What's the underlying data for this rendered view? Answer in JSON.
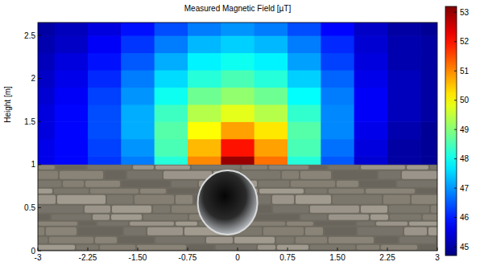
{
  "chart_data": {
    "type": "heatmap",
    "title": "Measured Magnetic Field [µT]",
    "ylabel": "Height [m]",
    "xlim": [
      -3,
      3
    ],
    "ylim": [
      0,
      2.65
    ],
    "xticks": [
      -3,
      -2.25,
      {
        "value": -1.5,
        "label": "-1.50"
      },
      -0.75,
      0,
      0.75,
      {
        "value": 1.5,
        "label": "1.50"
      },
      2.25,
      3
    ],
    "yticks": [
      0,
      0.5,
      1,
      1.5,
      2,
      2.5
    ],
    "x": [
      -3,
      -2.5,
      -2,
      -1.5,
      -1,
      -0.5,
      0,
      0.5,
      1,
      1.5,
      2,
      2.5,
      3
    ],
    "y": [
      1.0,
      1.2,
      1.4,
      1.6,
      1.8,
      2.0,
      2.2,
      2.4,
      2.6
    ],
    "cells": [
      [
        45.6,
        45.8,
        46.2,
        46.8,
        48.2,
        51.0,
        53.0,
        51.2,
        48.2,
        46.5,
        45.4,
        45.0,
        44.9
      ],
      [
        45.6,
        45.8,
        46.3,
        47.0,
        48.5,
        50.6,
        52.0,
        50.8,
        48.5,
        46.7,
        45.5,
        45.0,
        44.9
      ],
      [
        45.5,
        45.8,
        46.4,
        47.2,
        48.6,
        50.0,
        50.8,
        50.2,
        48.6,
        46.9,
        45.6,
        45.1,
        44.9
      ],
      [
        45.5,
        45.8,
        46.4,
        47.2,
        48.4,
        49.4,
        49.8,
        49.4,
        48.3,
        46.9,
        45.7,
        45.2,
        45.0
      ],
      [
        45.4,
        45.7,
        46.3,
        47.0,
        48.0,
        48.8,
        49.1,
        48.8,
        47.9,
        46.8,
        45.7,
        45.2,
        45.0
      ],
      [
        45.3,
        45.6,
        46.1,
        46.8,
        47.6,
        48.2,
        48.5,
        48.2,
        47.5,
        46.6,
        45.6,
        45.2,
        45.0
      ],
      [
        45.2,
        45.5,
        45.9,
        46.5,
        47.2,
        47.8,
        48.0,
        47.8,
        47.1,
        46.3,
        45.5,
        45.1,
        45.0
      ],
      [
        45.1,
        45.3,
        45.7,
        46.2,
        46.8,
        47.3,
        47.5,
        47.3,
        46.8,
        46.1,
        45.4,
        45.1,
        45.0
      ],
      [
        45.0,
        45.2,
        45.5,
        45.9,
        46.4,
        46.8,
        47.0,
        46.8,
        46.4,
        45.8,
        45.3,
        45.0,
        44.9
      ]
    ],
    "color_range": [
      44.7,
      53.2
    ],
    "color_ticks": [
      45,
      46,
      47,
      48,
      49,
      50,
      51,
      52,
      53
    ]
  }
}
